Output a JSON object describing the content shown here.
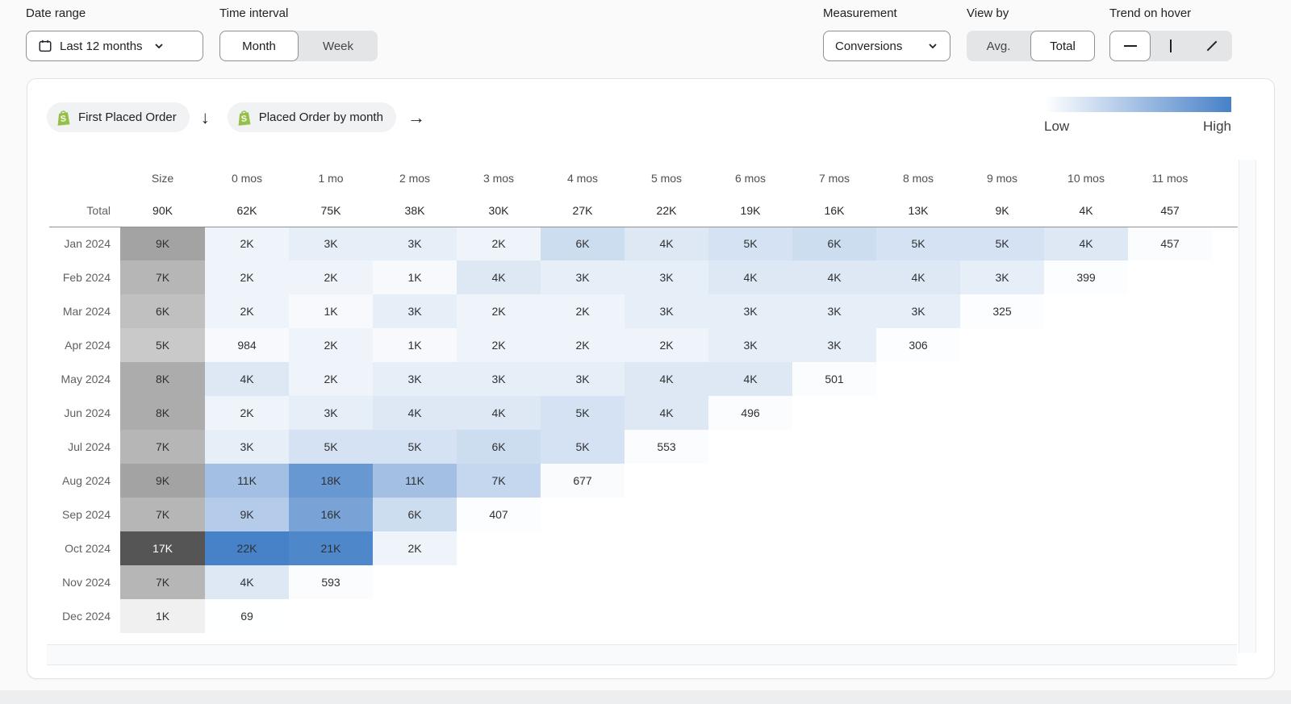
{
  "toolbar": {
    "date_range": {
      "label": "Date range",
      "value": "Last 12 months"
    },
    "time_interval": {
      "label": "Time interval",
      "options": [
        "Month",
        "Week"
      ],
      "selected": "Month"
    },
    "measurement": {
      "label": "Measurement",
      "value": "Conversions"
    },
    "view_by": {
      "label": "View by",
      "options": [
        "Avg.",
        "Total"
      ],
      "selected": "Total"
    },
    "trend_on_hover": {
      "label": "Trend on hover",
      "options": [
        "line-trend",
        "bar-trend",
        "diagonal-trend"
      ],
      "selected": "line-trend"
    }
  },
  "panel": {
    "cohort_badge": "First Placed Order",
    "metric_badge": "Placed Order by month",
    "down_arrow": "↓",
    "right_arrow": "→",
    "legend": {
      "low": "Low",
      "high": "High"
    }
  },
  "colors": {
    "heat_high": "#4781c8",
    "size_dark": "#555555",
    "shopify_green": "#96bf48",
    "divider": "#8f9399"
  },
  "table": {
    "columns": [
      "Size",
      "0 mos",
      "1 mo",
      "2 mos",
      "3 mos",
      "4 mos",
      "5 mos",
      "6 mos",
      "7 mos",
      "8 mos",
      "9 mos",
      "10 mos",
      "11 mos"
    ],
    "total": {
      "label": "Total",
      "size": "90K",
      "cells": [
        "62K",
        "75K",
        "38K",
        "30K",
        "27K",
        "22K",
        "19K",
        "16K",
        "13K",
        "9K",
        "4K",
        "457"
      ]
    },
    "rows": [
      {
        "label": "Jan 2024",
        "size": [
          "9K",
          9000
        ],
        "cells": [
          [
            "2K",
            2000
          ],
          [
            "3K",
            3000
          ],
          [
            "3K",
            3000
          ],
          [
            "2K",
            2000
          ],
          [
            "6K",
            6000
          ],
          [
            "4K",
            4000
          ],
          [
            "5K",
            5000
          ],
          [
            "6K",
            6000
          ],
          [
            "5K",
            5000
          ],
          [
            "5K",
            5000
          ],
          [
            "4K",
            4000
          ],
          [
            "457",
            457
          ]
        ]
      },
      {
        "label": "Feb 2024",
        "size": [
          "7K",
          7000
        ],
        "cells": [
          [
            "2K",
            2000
          ],
          [
            "2K",
            2000
          ],
          [
            "1K",
            1000
          ],
          [
            "4K",
            4000
          ],
          [
            "3K",
            3000
          ],
          [
            "3K",
            3000
          ],
          [
            "4K",
            4000
          ],
          [
            "4K",
            4000
          ],
          [
            "4K",
            4000
          ],
          [
            "3K",
            3000
          ],
          [
            "399",
            399
          ]
        ]
      },
      {
        "label": "Mar 2024",
        "size": [
          "6K",
          6000
        ],
        "cells": [
          [
            "2K",
            2000
          ],
          [
            "1K",
            1000
          ],
          [
            "3K",
            3000
          ],
          [
            "2K",
            2000
          ],
          [
            "2K",
            2000
          ],
          [
            "3K",
            3000
          ],
          [
            "3K",
            3000
          ],
          [
            "3K",
            3000
          ],
          [
            "3K",
            3000
          ],
          [
            "325",
            325
          ]
        ]
      },
      {
        "label": "Apr 2024",
        "size": [
          "5K",
          5000
        ],
        "cells": [
          [
            "984",
            984
          ],
          [
            "2K",
            2000
          ],
          [
            "1K",
            1000
          ],
          [
            "2K",
            2000
          ],
          [
            "2K",
            2000
          ],
          [
            "2K",
            2000
          ],
          [
            "3K",
            3000
          ],
          [
            "3K",
            3000
          ],
          [
            "306",
            306
          ]
        ]
      },
      {
        "label": "May 2024",
        "size": [
          "8K",
          8000
        ],
        "cells": [
          [
            "4K",
            4000
          ],
          [
            "2K",
            2000
          ],
          [
            "3K",
            3000
          ],
          [
            "3K",
            3000
          ],
          [
            "3K",
            3000
          ],
          [
            "4K",
            4000
          ],
          [
            "4K",
            4000
          ],
          [
            "501",
            501
          ]
        ]
      },
      {
        "label": "Jun 2024",
        "size": [
          "8K",
          8000
        ],
        "cells": [
          [
            "2K",
            2000
          ],
          [
            "3K",
            3000
          ],
          [
            "4K",
            4000
          ],
          [
            "4K",
            4000
          ],
          [
            "5K",
            5000
          ],
          [
            "4K",
            4000
          ],
          [
            "496",
            496
          ]
        ]
      },
      {
        "label": "Jul 2024",
        "size": [
          "7K",
          7000
        ],
        "cells": [
          [
            "3K",
            3000
          ],
          [
            "5K",
            5000
          ],
          [
            "5K",
            5000
          ],
          [
            "6K",
            6000
          ],
          [
            "5K",
            5000
          ],
          [
            "553",
            553
          ]
        ]
      },
      {
        "label": "Aug 2024",
        "size": [
          "9K",
          9000
        ],
        "cells": [
          [
            "11K",
            11000
          ],
          [
            "18K",
            18000
          ],
          [
            "11K",
            11000
          ],
          [
            "7K",
            7000
          ],
          [
            "677",
            677
          ]
        ]
      },
      {
        "label": "Sep 2024",
        "size": [
          "7K",
          7000
        ],
        "cells": [
          [
            "9K",
            9000
          ],
          [
            "16K",
            16000
          ],
          [
            "6K",
            6000
          ],
          [
            "407",
            407
          ]
        ]
      },
      {
        "label": "Oct 2024",
        "size": [
          "17K",
          17000
        ],
        "cells": [
          [
            "22K",
            22000
          ],
          [
            "21K",
            21000
          ],
          [
            "2K",
            2000
          ]
        ]
      },
      {
        "label": "Nov 2024",
        "size": [
          "7K",
          7000
        ],
        "cells": [
          [
            "4K",
            4000
          ],
          [
            "593",
            593
          ]
        ]
      },
      {
        "label": "Dec 2024",
        "size": [
          "1K",
          1000
        ],
        "cells": [
          [
            "69",
            69
          ]
        ]
      }
    ],
    "heat_max": 22000,
    "size_max": 17000
  },
  "chart_data": {
    "type": "heatmap",
    "title": "First Placed Order cohorts vs Placed Order by month (Conversions, Total)",
    "x_labels": [
      "0 mos",
      "1 mo",
      "2 mos",
      "3 mos",
      "4 mos",
      "5 mos",
      "6 mos",
      "7 mos",
      "8 mos",
      "9 mos",
      "10 mos",
      "11 mos"
    ],
    "y_labels": [
      "Jan 2024",
      "Feb 2024",
      "Mar 2024",
      "Apr 2024",
      "May 2024",
      "Jun 2024",
      "Jul 2024",
      "Aug 2024",
      "Sep 2024",
      "Oct 2024",
      "Nov 2024",
      "Dec 2024"
    ],
    "cohort_sizes": [
      9000,
      7000,
      6000,
      5000,
      8000,
      8000,
      7000,
      9000,
      7000,
      17000,
      7000,
      1000
    ],
    "totals": {
      "size": 90000,
      "by_month": [
        62000,
        75000,
        38000,
        30000,
        27000,
        22000,
        19000,
        16000,
        13000,
        9000,
        4000,
        457
      ]
    },
    "values": [
      [
        2000,
        3000,
        3000,
        2000,
        6000,
        4000,
        5000,
        6000,
        5000,
        5000,
        4000,
        457
      ],
      [
        2000,
        2000,
        1000,
        4000,
        3000,
        3000,
        4000,
        4000,
        4000,
        3000,
        399,
        null
      ],
      [
        2000,
        1000,
        3000,
        2000,
        2000,
        3000,
        3000,
        3000,
        3000,
        325,
        null,
        null
      ],
      [
        984,
        2000,
        1000,
        2000,
        2000,
        2000,
        3000,
        3000,
        306,
        null,
        null,
        null
      ],
      [
        4000,
        2000,
        3000,
        3000,
        3000,
        4000,
        4000,
        501,
        null,
        null,
        null,
        null
      ],
      [
        2000,
        3000,
        4000,
        4000,
        5000,
        4000,
        496,
        null,
        null,
        null,
        null,
        null
      ],
      [
        3000,
        5000,
        5000,
        6000,
        5000,
        553,
        null,
        null,
        null,
        null,
        null,
        null
      ],
      [
        11000,
        18000,
        11000,
        7000,
        677,
        null,
        null,
        null,
        null,
        null,
        null,
        null
      ],
      [
        9000,
        16000,
        6000,
        407,
        null,
        null,
        null,
        null,
        null,
        null,
        null,
        null
      ],
      [
        22000,
        21000,
        2000,
        null,
        null,
        null,
        null,
        null,
        null,
        null,
        null,
        null
      ],
      [
        4000,
        593,
        null,
        null,
        null,
        null,
        null,
        null,
        null,
        null,
        null,
        null
      ],
      [
        69,
        null,
        null,
        null,
        null,
        null,
        null,
        null,
        null,
        null,
        null,
        null
      ]
    ],
    "legend": {
      "low": "Low",
      "high": "High",
      "position": "top-right"
    },
    "color_scale": {
      "min_color": "#ffffff",
      "max_color": "#4781c8"
    }
  }
}
